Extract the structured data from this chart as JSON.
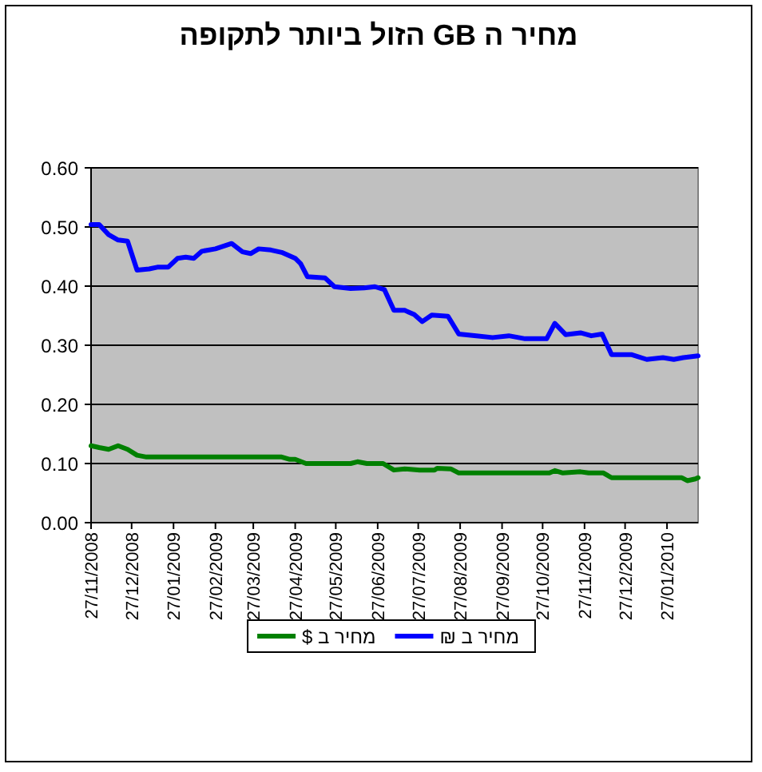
{
  "chart_data": {
    "type": "line",
    "title": "מחיר ה GB הזול ביותר לתקופה",
    "legend": "bottom",
    "grid": "y",
    "marker": "none",
    "line_style": "solid",
    "xlim": [
      "2008-11-27",
      "2010-02-19"
    ],
    "xticks": [
      {
        "value": "2008-11-27",
        "label": "27/11/2008"
      },
      {
        "value": "2008-12-27",
        "label": "27/12/2008"
      },
      {
        "value": "2009-01-27",
        "label": "27/01/2009"
      },
      {
        "value": "2009-02-27",
        "label": "27/02/2009"
      },
      {
        "value": "2009-03-27",
        "label": "27/03/2009"
      },
      {
        "value": "2009-04-27",
        "label": "27/04/2009"
      },
      {
        "value": "2009-05-27",
        "label": "27/05/2009"
      },
      {
        "value": "2009-06-27",
        "label": "27/06/2009"
      },
      {
        "value": "2009-07-27",
        "label": "27/07/2009"
      },
      {
        "value": "2009-08-27",
        "label": "27/08/2009"
      },
      {
        "value": "2009-09-27",
        "label": "27/09/2009"
      },
      {
        "value": "2009-10-27",
        "label": "27/10/2009"
      },
      {
        "value": "2009-11-27",
        "label": "27/11/2009"
      },
      {
        "value": "2009-12-27",
        "label": "27/12/2009"
      },
      {
        "value": "2010-01-27",
        "label": "27/01/2010"
      }
    ],
    "ylim": [
      0,
      0.6
    ],
    "yticks": [
      {
        "value": 0,
        "label": "0.00"
      },
      {
        "value": 0.1,
        "label": "0.10"
      },
      {
        "value": 0.2,
        "label": "0.20"
      },
      {
        "value": 0.3,
        "label": "0.30"
      },
      {
        "value": 0.4,
        "label": "0.40"
      },
      {
        "value": 0.5,
        "label": "0.50"
      },
      {
        "value": 0.6,
        "label": "0.60"
      }
    ],
    "series": [
      {
        "name": "מחיר ב $",
        "color": "#008000",
        "x": [
          "2008-11-27",
          "2008-12-03",
          "2008-12-10",
          "2008-12-17",
          "2008-12-24",
          "2008-12-31",
          "2009-01-07",
          "2009-04-17",
          "2009-04-23",
          "2009-04-27",
          "2009-05-05",
          "2009-06-07",
          "2009-06-12",
          "2009-06-19",
          "2009-07-01",
          "2009-07-09",
          "2009-07-17",
          "2009-07-28",
          "2009-08-08",
          "2009-08-10",
          "2009-08-20",
          "2009-08-26",
          "2009-11-01",
          "2009-11-05",
          "2009-11-11",
          "2009-11-24",
          "2009-11-30",
          "2009-12-11",
          "2009-12-17",
          "2010-02-07",
          "2010-02-11",
          "2010-02-17",
          "2010-02-19"
        ],
        "values": [
          0.13,
          0.127,
          0.124,
          0.13,
          0.124,
          0.114,
          0.111,
          0.111,
          0.107,
          0.107,
          0.1,
          0.1,
          0.103,
          0.1,
          0.1,
          0.089,
          0.091,
          0.089,
          0.089,
          0.092,
          0.091,
          0.084,
          0.084,
          0.088,
          0.084,
          0.086,
          0.084,
          0.084,
          0.076,
          0.076,
          0.071,
          0.074,
          0.076
        ]
      },
      {
        "name": "מחיר ב ₪",
        "color": "#0000ff",
        "x": [
          "2008-11-27",
          "2008-12-03",
          "2008-12-10",
          "2008-12-17",
          "2008-12-24",
          "2008-12-31",
          "2009-01-09",
          "2009-01-15",
          "2009-01-23",
          "2009-01-30",
          "2009-02-05",
          "2009-02-11",
          "2009-02-17",
          "2009-02-27",
          "2009-03-11",
          "2009-03-19",
          "2009-03-25",
          "2009-03-31",
          "2009-04-09",
          "2009-04-17",
          "2009-04-27",
          "2009-05-01",
          "2009-05-06",
          "2009-05-19",
          "2009-05-26",
          "2009-06-07",
          "2009-06-17",
          "2009-06-25",
          "2009-07-02",
          "2009-07-09",
          "2009-07-17",
          "2009-07-24",
          "2009-07-30",
          "2009-08-06",
          "2009-08-18",
          "2009-08-26",
          "2009-09-08",
          "2009-09-20",
          "2009-10-02",
          "2009-10-14",
          "2009-10-30",
          "2009-11-05",
          "2009-11-13",
          "2009-11-24",
          "2009-12-02",
          "2009-12-10",
          "2009-12-17",
          "2010-01-01",
          "2010-01-12",
          "2010-01-24",
          "2010-02-01",
          "2010-02-08",
          "2010-02-19"
        ],
        "values": [
          0.504,
          0.504,
          0.487,
          0.478,
          0.476,
          0.427,
          0.429,
          0.432,
          0.432,
          0.447,
          0.449,
          0.447,
          0.459,
          0.463,
          0.472,
          0.458,
          0.455,
          0.463,
          0.461,
          0.457,
          0.447,
          0.438,
          0.416,
          0.414,
          0.399,
          0.396,
          0.397,
          0.399,
          0.394,
          0.359,
          0.359,
          0.352,
          0.34,
          0.351,
          0.349,
          0.319,
          0.316,
          0.313,
          0.316,
          0.311,
          0.311,
          0.337,
          0.318,
          0.321,
          0.316,
          0.319,
          0.284,
          0.284,
          0.276,
          0.279,
          0.276,
          0.279,
          0.282
        ]
      }
    ]
  }
}
